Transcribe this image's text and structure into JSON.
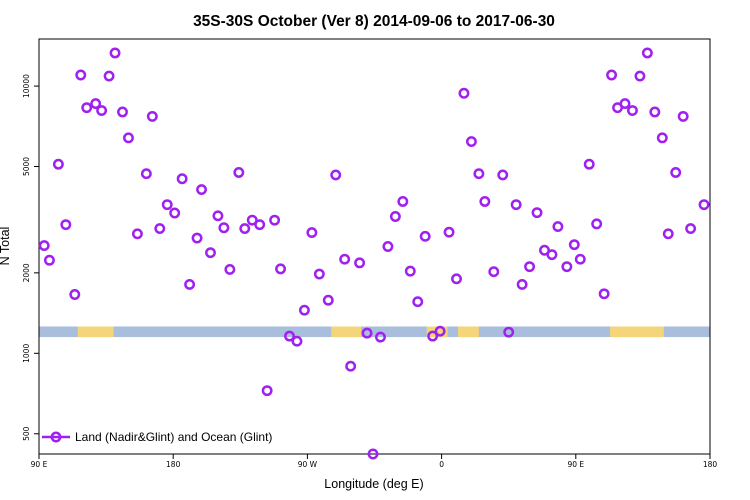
{
  "chart_data": {
    "type": "scatter",
    "title": "35S-30S October (Ver 8)   2014-09-06 to 2017-06-30",
    "xlabel": "Longitude (deg E)",
    "ylabel": "N Total",
    "y_scale": "log",
    "xlim": [
      90,
      540
    ],
    "ylim": [
      420,
      15000
    ],
    "x_ticks": [
      {
        "value": 90,
        "label": "90 E"
      },
      {
        "value": 180,
        "label": "180"
      },
      {
        "value": 270,
        "label": "90 W"
      },
      {
        "value": 360,
        "label": "0"
      },
      {
        "value": 450,
        "label": "90 E"
      },
      {
        "value": 540,
        "label": "180"
      }
    ],
    "y_ticks": [
      {
        "value": 500,
        "label": "500"
      },
      {
        "value": 1000,
        "label": "1000"
      },
      {
        "value": 2000,
        "label": "2000"
      },
      {
        "value": 5000,
        "label": "5000"
      },
      {
        "value": 10000,
        "label": "10000"
      }
    ],
    "grid": false,
    "legend": {
      "position": "bottom-left"
    },
    "series": [
      {
        "name": "Land (Nadir&Glint) and Ocean (Glint)",
        "color": "#a020f0",
        "marker": "open-circle",
        "points": [
          {
            "x": 93.5,
            "y": 2530
          },
          {
            "x": 97,
            "y": 2230
          },
          {
            "x": 103,
            "y": 5100
          },
          {
            "x": 108,
            "y": 3030
          },
          {
            "x": 114,
            "y": 1660
          },
          {
            "x": 118,
            "y": 11000
          },
          {
            "x": 122,
            "y": 8300
          },
          {
            "x": 128,
            "y": 8600
          },
          {
            "x": 132,
            "y": 8100
          },
          {
            "x": 137,
            "y": 10900
          },
          {
            "x": 141,
            "y": 13300
          },
          {
            "x": 146,
            "y": 8000
          },
          {
            "x": 150,
            "y": 6400
          },
          {
            "x": 156,
            "y": 2800
          },
          {
            "x": 162,
            "y": 4700
          },
          {
            "x": 166,
            "y": 7700
          },
          {
            "x": 171,
            "y": 2930
          },
          {
            "x": 176,
            "y": 3600
          },
          {
            "x": 181,
            "y": 3350
          },
          {
            "x": 186,
            "y": 4500
          },
          {
            "x": 191,
            "y": 1810
          },
          {
            "x": 196,
            "y": 2700
          },
          {
            "x": 199,
            "y": 4100
          },
          {
            "x": 205,
            "y": 2380
          },
          {
            "x": 210,
            "y": 3270
          },
          {
            "x": 214,
            "y": 2950
          },
          {
            "x": 218,
            "y": 2060
          },
          {
            "x": 224,
            "y": 4750
          },
          {
            "x": 228,
            "y": 2930
          },
          {
            "x": 233,
            "y": 3150
          },
          {
            "x": 238,
            "y": 3030
          },
          {
            "x": 243,
            "y": 725
          },
          {
            "x": 248,
            "y": 3150
          },
          {
            "x": 252,
            "y": 2070
          },
          {
            "x": 258,
            "y": 1160
          },
          {
            "x": 263,
            "y": 1110
          },
          {
            "x": 268,
            "y": 1450
          },
          {
            "x": 273,
            "y": 2830
          },
          {
            "x": 278,
            "y": 1980
          },
          {
            "x": 284,
            "y": 1580
          },
          {
            "x": 289,
            "y": 4650
          },
          {
            "x": 295,
            "y": 2250
          },
          {
            "x": 299,
            "y": 895
          },
          {
            "x": 305,
            "y": 2180
          },
          {
            "x": 310,
            "y": 1190
          },
          {
            "x": 314,
            "y": 420
          },
          {
            "x": 319,
            "y": 1150
          },
          {
            "x": 324,
            "y": 2510
          },
          {
            "x": 329,
            "y": 3250
          },
          {
            "x": 334,
            "y": 3700
          },
          {
            "x": 339,
            "y": 2030
          },
          {
            "x": 344,
            "y": 1560
          },
          {
            "x": 349,
            "y": 2740
          },
          {
            "x": 354,
            "y": 1160
          },
          {
            "x": 359,
            "y": 1210
          },
          {
            "x": 365,
            "y": 2840
          },
          {
            "x": 370,
            "y": 1900
          },
          {
            "x": 375,
            "y": 9400
          },
          {
            "x": 380,
            "y": 6200
          },
          {
            "x": 385,
            "y": 4700
          },
          {
            "x": 389,
            "y": 3700
          },
          {
            "x": 395,
            "y": 2020
          },
          {
            "x": 401,
            "y": 4650
          },
          {
            "x": 405,
            "y": 1200
          },
          {
            "x": 410,
            "y": 3600
          },
          {
            "x": 414,
            "y": 1810
          },
          {
            "x": 419,
            "y": 2110
          },
          {
            "x": 424,
            "y": 3360
          },
          {
            "x": 429,
            "y": 2430
          },
          {
            "x": 434,
            "y": 2340
          },
          {
            "x": 438,
            "y": 2980
          },
          {
            "x": 444,
            "y": 2110
          },
          {
            "x": 449,
            "y": 2550
          },
          {
            "x": 453,
            "y": 2250
          },
          {
            "x": 459,
            "y": 5100
          },
          {
            "x": 464,
            "y": 3050
          },
          {
            "x": 469,
            "y": 1670
          },
          {
            "x": 474,
            "y": 11000
          },
          {
            "x": 478,
            "y": 8300
          },
          {
            "x": 483,
            "y": 8600
          },
          {
            "x": 488,
            "y": 8100
          },
          {
            "x": 493,
            "y": 10900
          },
          {
            "x": 498,
            "y": 13300
          },
          {
            "x": 503,
            "y": 8000
          },
          {
            "x": 508,
            "y": 6400
          },
          {
            "x": 512,
            "y": 2800
          },
          {
            "x": 517,
            "y": 4750
          },
          {
            "x": 522,
            "y": 7700
          },
          {
            "x": 527,
            "y": 2930
          },
          {
            "x": 536,
            "y": 3600
          }
        ]
      }
    ],
    "background_band": {
      "y_range": [
        1150,
        1260
      ],
      "ocean_color": "#a8bedc",
      "land_color": "#f5d57a",
      "land_segments": [
        [
          116,
          140
        ],
        [
          286,
          306
        ],
        [
          350,
          364
        ],
        [
          371,
          385
        ],
        [
          473,
          509
        ]
      ]
    }
  }
}
